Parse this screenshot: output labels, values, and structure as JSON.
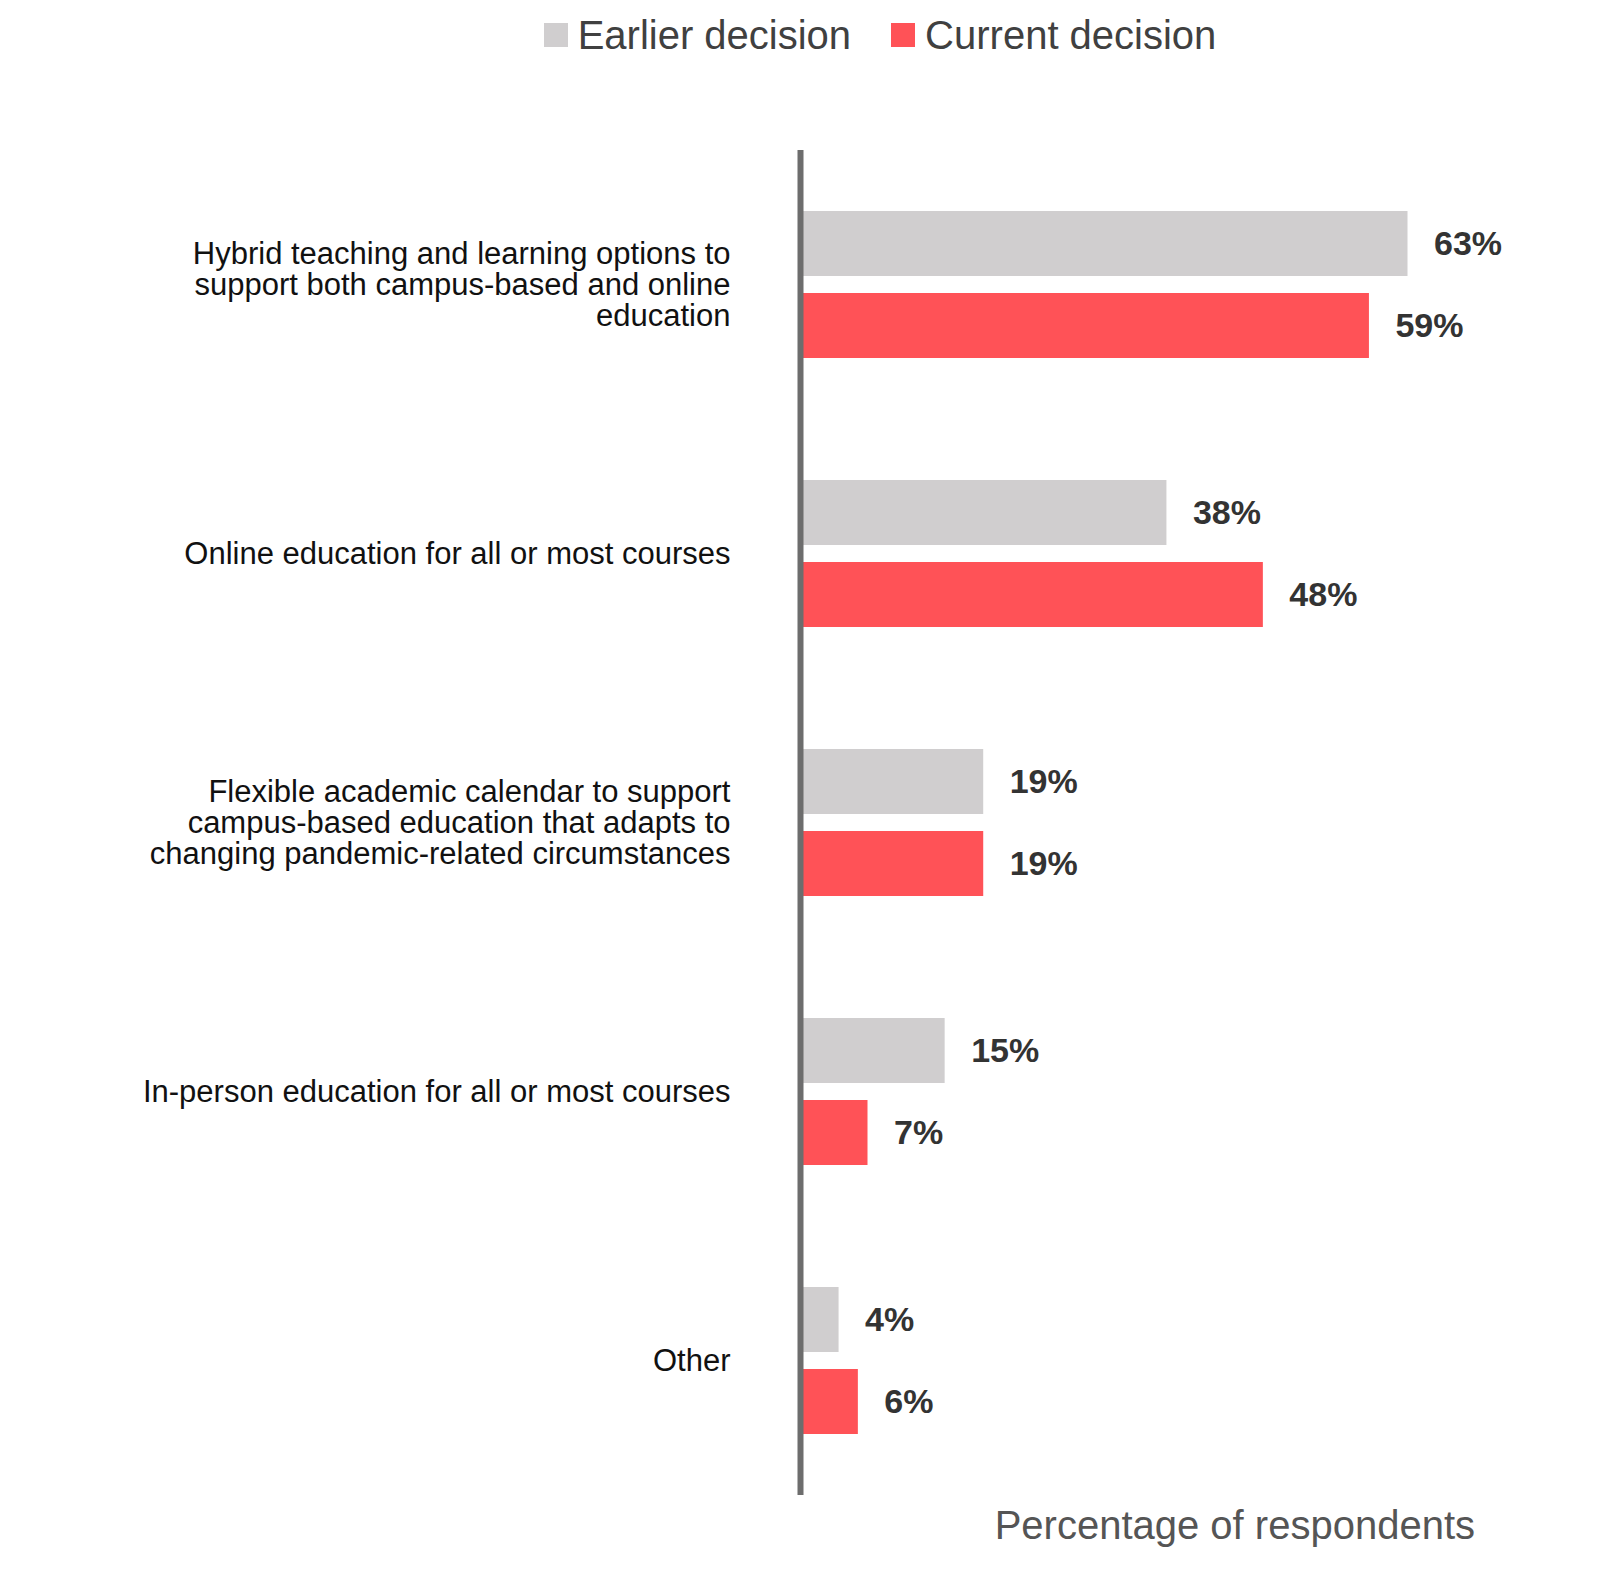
{
  "chart_data": {
    "type": "bar",
    "orientation": "horizontal",
    "x_label": "Percentage of respondents",
    "categories": [
      "Hybrid teaching and learning options to support both campus-based and online education",
      "Online education for all or most courses",
      "Flexible academic calendar to support campus-based education that adapts to changing pandemic-related circumstances",
      "In-person education for all or most courses",
      "Other"
    ],
    "series": [
      {
        "name": "Earlier decision",
        "color": "#d0cecf",
        "values": [
          63,
          38,
          19,
          15,
          4
        ],
        "value_labels": [
          "63%",
          "38%",
          "19%",
          "15%",
          "4%"
        ]
      },
      {
        "name": "Current decision",
        "color": "#ff5257",
        "values": [
          59,
          48,
          19,
          7,
          6
        ],
        "value_labels": [
          "59%",
          "48%",
          "19%",
          "7%",
          "6%"
        ]
      }
    ],
    "xlim": [
      0,
      70
    ],
    "xticks": [],
    "data_labels": true,
    "tick_labels": "y",
    "legend": "top"
  }
}
